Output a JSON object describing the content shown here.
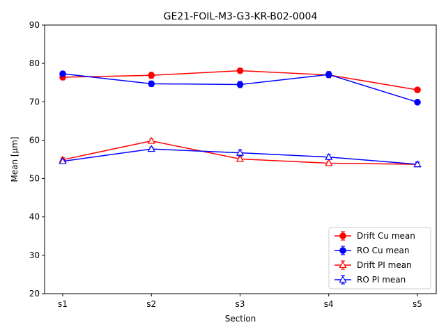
{
  "chart_data": {
    "type": "line",
    "title": "GE21-FOIL-M3-G3-KR-B02-0004",
    "xlabel": "Section",
    "ylabel": "Mean [μm]",
    "categories": [
      "s1",
      "s2",
      "s3",
      "s4",
      "s5"
    ],
    "ylim": [
      20,
      90
    ],
    "yticks": [
      20,
      30,
      40,
      50,
      60,
      70,
      80,
      90
    ],
    "grid": false,
    "legend_position": "lower-right",
    "series": [
      {
        "name": "Drift Cu mean",
        "color": "#ff0000",
        "marker": "circle",
        "filled": true,
        "values": [
          76.4,
          76.9,
          78.1,
          77.0,
          73.1
        ],
        "errors": [
          0.7,
          0.8,
          0.6,
          0.7,
          0.6
        ]
      },
      {
        "name": "RO Cu mean",
        "color": "#0000ff",
        "marker": "circle",
        "filled": true,
        "values": [
          77.3,
          74.7,
          74.5,
          77.1,
          69.9
        ],
        "errors": [
          0.6,
          0.7,
          0.8,
          0.8,
          0.5
        ]
      },
      {
        "name": "Drift PI mean",
        "color": "#ff0000",
        "marker": "triangle",
        "filled": false,
        "values": [
          54.9,
          59.8,
          55.1,
          54.0,
          53.7
        ],
        "errors": [
          0.5,
          0.5,
          0.5,
          0.5,
          0.5
        ]
      },
      {
        "name": "RO PI mean",
        "color": "#0000ff",
        "marker": "triangle",
        "filled": false,
        "values": [
          54.5,
          57.7,
          56.7,
          55.6,
          53.7
        ],
        "errors": [
          0.5,
          0.5,
          0.8,
          0.6,
          0.6
        ]
      }
    ]
  }
}
